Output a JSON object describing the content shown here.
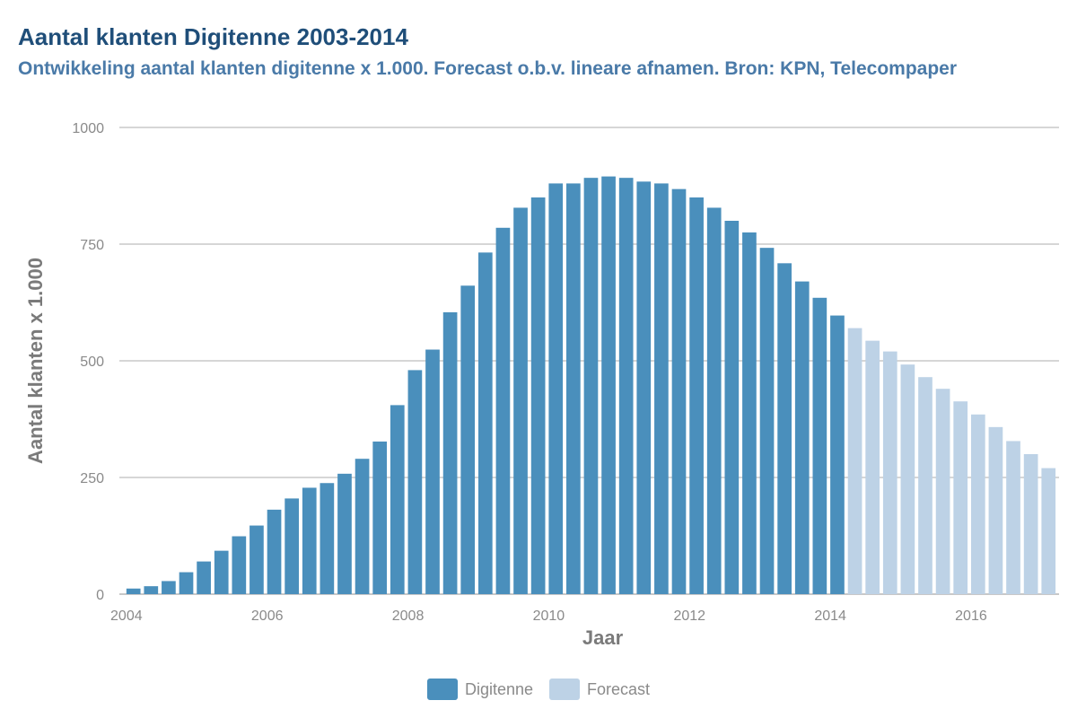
{
  "header": {
    "title": "Aantal klanten Digitenne 2003-2014",
    "subtitle": "Ontwikkeling aantal klanten digitenne x 1.000. Forecast o.b.v. lineare afnamen. Bron: KPN, Telecompaper"
  },
  "legend": {
    "actual_label": "Digitenne",
    "forecast_label": "Forecast"
  },
  "colors": {
    "actual": "#4a8fbc",
    "forecast": "#bdd2e6",
    "grid": "#c8c8c8",
    "axis": "#c8c8c8"
  },
  "chart_data": {
    "type": "bar",
    "title": "Aantal klanten Digitenne 2003-2014",
    "xlabel": "Jaar",
    "ylabel": "Aantal klanten x 1.000",
    "xlim": [
      2003.9,
      2017.25
    ],
    "ylim": [
      0,
      1000
    ],
    "xticks": [
      2004,
      2006,
      2008,
      2010,
      2012,
      2014,
      2016
    ],
    "yticks": [
      0,
      250,
      500,
      750,
      1000
    ],
    "bar_width_years": 0.2,
    "legend_position": "bottom",
    "series": [
      {
        "name": "Digitenne",
        "x": [
          2004.0,
          2004.25,
          2004.5,
          2004.75,
          2005.0,
          2005.25,
          2005.5,
          2005.75,
          2006.0,
          2006.25,
          2006.5,
          2006.75,
          2007.0,
          2007.25,
          2007.5,
          2007.75,
          2008.0,
          2008.25,
          2008.5,
          2008.75,
          2009.0,
          2009.25,
          2009.5,
          2009.75,
          2010.0,
          2010.25,
          2010.5,
          2010.75,
          2011.0,
          2011.25,
          2011.5,
          2011.75,
          2012.0,
          2012.25,
          2012.5,
          2012.75,
          2013.0,
          2013.25,
          2013.5,
          2013.75,
          2014.0
        ],
        "values": [
          12,
          17,
          28,
          47,
          70,
          93,
          124,
          147,
          181,
          205,
          228,
          238,
          258,
          290,
          327,
          405,
          480,
          524,
          604,
          661,
          732,
          785,
          828,
          850,
          880,
          880,
          892,
          895,
          892,
          884,
          880,
          868,
          850,
          828,
          800,
          775,
          742,
          709,
          670,
          635,
          597
        ]
      },
      {
        "name": "Forecast",
        "x": [
          2014.25,
          2014.5,
          2014.75,
          2015.0,
          2015.25,
          2015.5,
          2015.75,
          2016.0,
          2016.25,
          2016.5,
          2016.75,
          2017.0
        ],
        "values": [
          570,
          543,
          520,
          492,
          465,
          440,
          413,
          385,
          358,
          328,
          300,
          270
        ]
      }
    ]
  }
}
